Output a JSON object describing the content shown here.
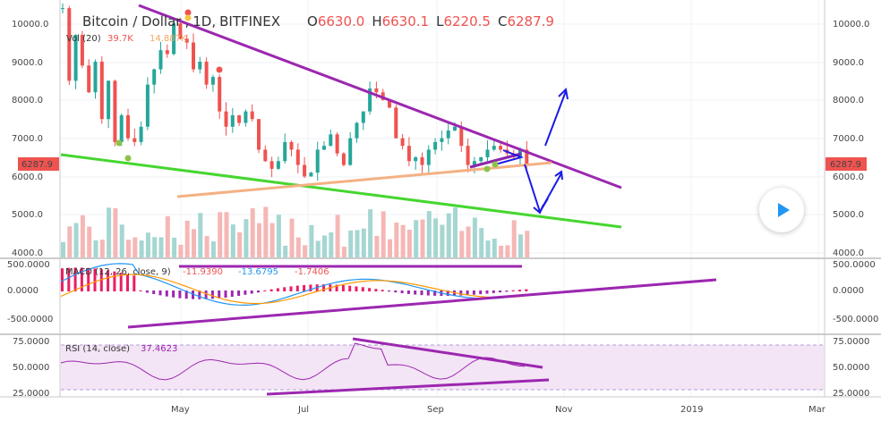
{
  "legend": {
    "symbol": "Bitcoin / Dollar",
    "interval": "1D",
    "exchange": "BITFINEX",
    "o_label": "O",
    "o_value": "6630.0",
    "h_label": "H",
    "h_value": "6630.1",
    "l_label": "L",
    "l_value": "6220.5",
    "c_label": "C",
    "c_value": "6287.9",
    "vol_label": "Vol (20)",
    "vol_value": "39.7K",
    "vol_ma": "14.887K"
  },
  "price_axis": {
    "ticks": [
      "10000.0",
      "9000.0",
      "8000.0",
      "7000.0",
      "6000.0",
      "5000.0",
      "4000.0"
    ],
    "current_price": "6287.9"
  },
  "macd": {
    "title": "MACD (12, 26, close, 9)",
    "v1": "-11.9390",
    "v2": "-13.6795",
    "v3": "-1.7406",
    "ticks": [
      "500.0000",
      "0.0000",
      "-500.0000"
    ]
  },
  "rsi": {
    "title": "RSI (14, close)",
    "value": "37.4623",
    "ticks": [
      "75.0000",
      "50.0000",
      "25.0000"
    ]
  },
  "time_axis": [
    "May",
    "Jul",
    "Sep",
    "Nov",
    "2019",
    "Mar"
  ],
  "colors": {
    "up": "#26a69a",
    "down": "#ef5350",
    "resistance": "#9c27b0",
    "support": "#4caf50",
    "orange": "#f0a860",
    "arrows": "#1a1ae6",
    "macd": "#2196f3",
    "signal": "#ff9800",
    "rsi": "#9c27b0",
    "play": "#2196f3"
  },
  "chart_data": {
    "type": "candlestick",
    "x_labels": [
      "May",
      "Jul",
      "Sep",
      "Nov",
      "2019",
      "Mar"
    ],
    "ylim": [
      3900,
      10500
    ],
    "series": [
      {
        "values": [
          10400,
          8500,
          9700,
          8900,
          8200,
          9000,
          7500,
          8500,
          6900,
          7600,
          7000,
          6900,
          7300,
          8400,
          8800,
          9300,
          9200,
          10000,
          9600,
          9500,
          8800,
          9000,
          8400,
          8600,
          7700,
          7300,
          7600,
          7400,
          7700,
          7500,
          6700,
          6400,
          6200,
          6400,
          6900,
          6700,
          6300,
          6000,
          6100,
          6700,
          6800,
          7100,
          6600,
          6300,
          7000,
          7400,
          7700,
          8300,
          8200,
          8000,
          7800,
          7000,
          6800,
          6400,
          6500,
          6300,
          6700,
          6900,
          7000,
          7200,
          7300,
          6800,
          6300,
          6400,
          6500,
          6700,
          6800,
          6700,
          6600,
          6500,
          6700,
          6300
        ]
      }
    ]
  }
}
